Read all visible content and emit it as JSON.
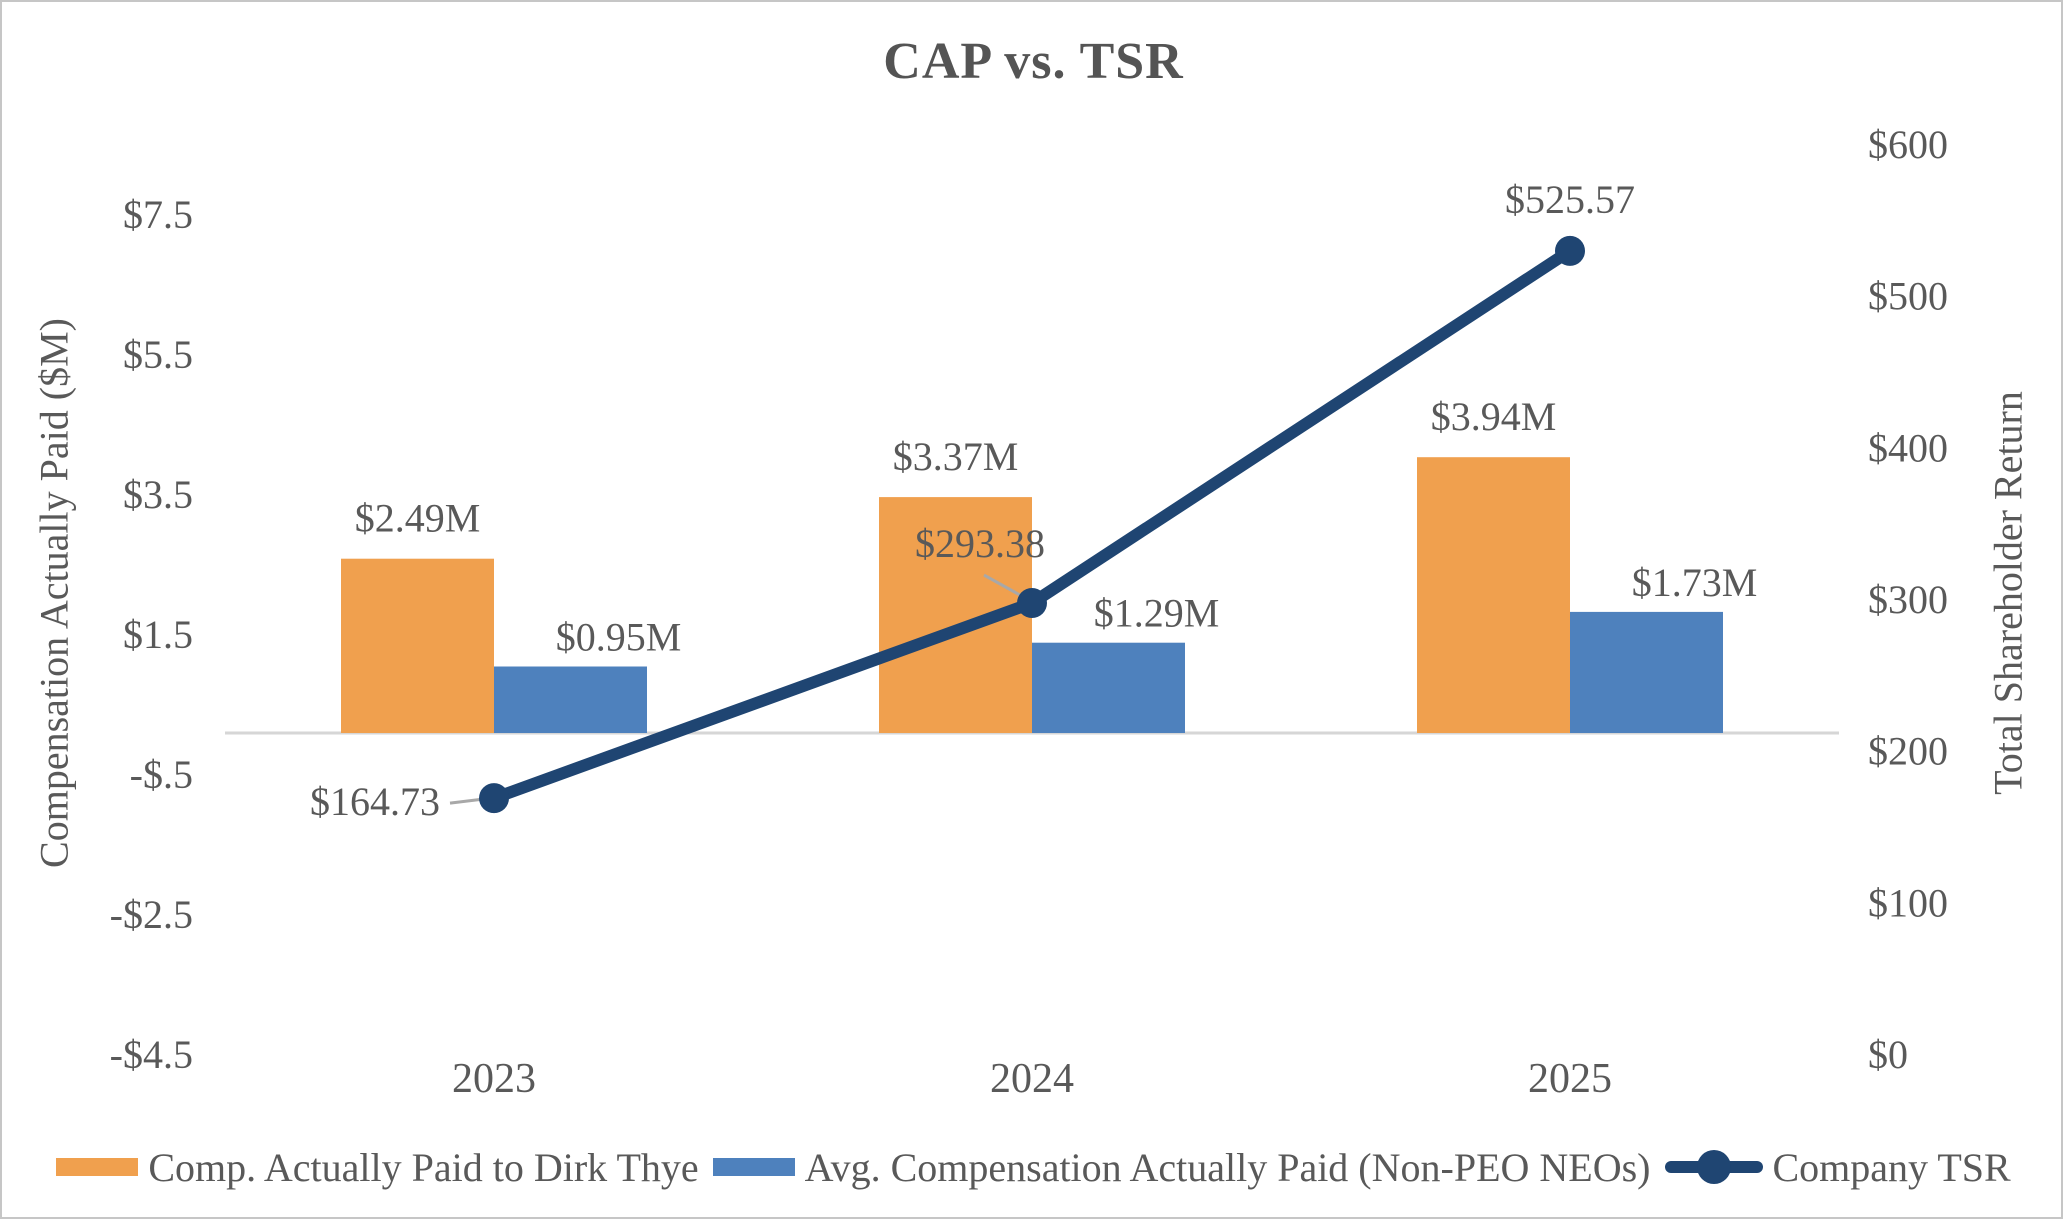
{
  "title": "CAP vs. TSR",
  "colors": {
    "orange": "#F0A04E",
    "blue": "#4E81BD",
    "navy": "#1F4572",
    "text_gray": "#595959",
    "title_gray": "#545454",
    "axis_line_gray": "#D6D6D6",
    "leader_gray": "#A8A8A8",
    "border_gray": "#C6C6C6"
  },
  "legend": {
    "items": [
      {
        "label": "Comp. Actually Paid to Dirk Thye",
        "swatch": "orange-bar"
      },
      {
        "label": "Avg. Compensation Actually Paid (Non-PEO NEOs)",
        "swatch": "blue-bar"
      },
      {
        "label": "Company TSR",
        "swatch": "navy-line-marker"
      }
    ]
  },
  "chart_data": {
    "type": "combo-bar-line",
    "title": "CAP vs. TSR",
    "categories": [
      "2023",
      "2024",
      "2025"
    ],
    "series": [
      {
        "name": "Comp. Actually Paid to Dirk Thye",
        "type": "bar",
        "axis": "left",
        "color_key": "orange",
        "values": [
          2.49,
          3.37,
          3.94
        ],
        "labels": [
          "$2.49M",
          "$3.37M",
          "$3.94M"
        ]
      },
      {
        "name": "Avg. Compensation Actually Paid (Non-PEO NEOs)",
        "type": "bar",
        "axis": "left",
        "color_key": "blue",
        "values": [
          0.95,
          1.29,
          1.73
        ],
        "labels": [
          "$0.95M",
          "$1.29M",
          "$1.73M"
        ]
      },
      {
        "name": "Company TSR",
        "type": "line",
        "axis": "right",
        "color_key": "navy",
        "values": [
          164.73,
          293.38,
          525.57
        ],
        "labels": [
          "$164.73",
          "$293.38",
          "$525.57"
        ]
      }
    ],
    "left_axis": {
      "label": "Compensation Actually Paid ($M)",
      "min": -4.5,
      "max": 8.5,
      "tick_values": [
        7.5,
        5.5,
        3.5,
        1.5,
        -0.5,
        -2.5,
        -4.5
      ],
      "tick_labels": [
        "$7.5",
        "$5.5",
        "$3.5",
        "$1.5",
        "-$.5",
        "-$2.5",
        "-$4.5"
      ]
    },
    "right_axis": {
      "label": "Total Shareholder Return",
      "min": 0,
      "max": 600,
      "tick_values": [
        600,
        500,
        400,
        300,
        200,
        100,
        0
      ],
      "tick_labels": [
        "$600",
        "$500",
        "$400",
        "$300",
        "$200",
        "$100",
        "$0"
      ]
    },
    "grid": "zero-baseline-only",
    "legend_position": "bottom"
  }
}
